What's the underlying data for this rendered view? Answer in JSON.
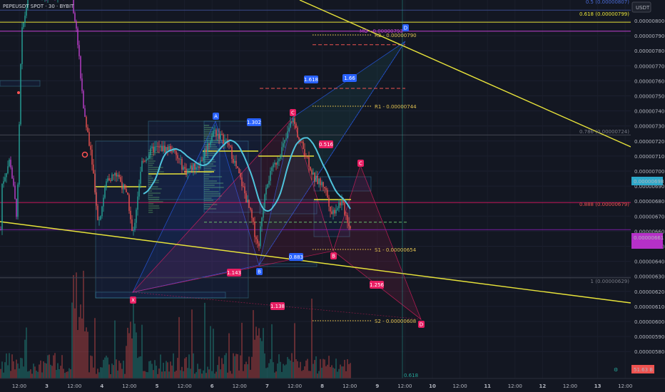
{
  "header": {
    "symbol": "PEPEUSDT SPOT · 30 · BYBIT",
    "currency": "USDT"
  },
  "colors": {
    "bg": "#131722",
    "up": "#26a69a",
    "down": "#ef5350",
    "purple": "#c040d0",
    "yellow": "#e8e33a",
    "cyan": "#4fc3dc",
    "pattern_blue": "#2962ff",
    "pattern_red": "#e91e63",
    "pivot_dot": "#ffd54f",
    "pivot_red": "#ff5252"
  },
  "chart_data": {
    "type": "candlestick",
    "price_axis": {
      "min": 5.75e-06,
      "max": 8.1e-06,
      "ticks": [
        "0.00000800",
        "0.00000790",
        "0.00000780",
        "0.00000770",
        "0.00000760",
        "0.00000750",
        "0.00000740",
        "0.00000730",
        "0.00000720",
        "0.00000710",
        "0.00000700",
        "0.00000690",
        "0.00000680",
        "0.00000670",
        "0.00000660",
        "0.00000650",
        "0.00000640",
        "0.00000630",
        "0.00000620",
        "0.00000610",
        "0.00000600",
        "0.00000590",
        "0.00000580"
      ]
    },
    "time_axis": {
      "labels": [
        "12:00",
        "3",
        "12:00",
        "4",
        "12:00",
        "5",
        "12:00",
        "6",
        "12:00",
        "7",
        "12:00",
        "8",
        "12:00",
        "9",
        "12:00",
        "10",
        "12:00",
        "11",
        "12:00",
        "12",
        "12:00",
        "13",
        "12:00"
      ],
      "bold": [
        "3",
        "4",
        "5",
        "6",
        "7",
        "8",
        "9",
        "10",
        "11",
        "12",
        "13"
      ]
    },
    "price_tags": {
      "current": "0.00000698",
      "purple": "0.00000661",
      "volume": "51.63 B"
    },
    "fib_levels": [
      {
        "label": "0.5 (0.00000807)",
        "price": 8.07e-06
      },
      {
        "label": "0.618 (0.00000799)",
        "price": 7.99e-06
      },
      {
        "label": "0.786 (0.00000724)",
        "price": 7.24e-06
      },
      {
        "label": "0.888 (0.00000679)",
        "price": 6.79e-06
      },
      {
        "label": "1 (0.00000629)",
        "price": 6.29e-06
      }
    ],
    "pivots": [
      {
        "label": "MO - 0.00000793",
        "price": 7.93e-06
      },
      {
        "label": "R2 - 0.00000790",
        "price": 7.9e-06
      },
      {
        "label": "R1 - 0.00000744",
        "price": 7.44e-06
      },
      {
        "label": "S1 - 0.00000654",
        "price": 6.54e-06
      },
      {
        "label": "S2 - 0.00000608",
        "price": 6.08e-06
      }
    ],
    "pattern_points": [
      "X",
      "A",
      "B",
      "C",
      "D"
    ],
    "pattern_points_2": [
      "X",
      "A",
      "B",
      "C",
      "D"
    ],
    "ratios": [
      "1.618",
      "1.66",
      "1.302",
      "0.516",
      "0.883",
      "1.143",
      "1.256",
      "1.138"
    ],
    "bottom_label": "0.618"
  }
}
